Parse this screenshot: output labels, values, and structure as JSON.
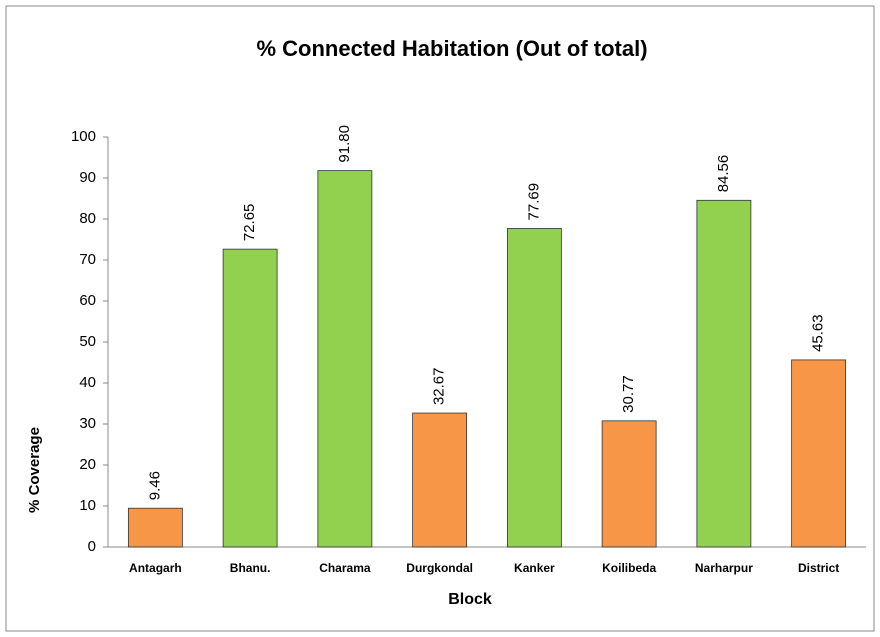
{
  "chart_data": {
    "type": "bar",
    "title": "% Connected Habitation (Out of total)",
    "x_label": "Block",
    "y_label": "% Coverage",
    "categories": [
      "Antagarh",
      "Bhanu.",
      "Charama",
      "Durgkondal",
      "Kanker",
      "Koilibeda",
      "Narharpur",
      "District"
    ],
    "values": [
      9.46,
      72.65,
      91.8,
      32.67,
      77.69,
      30.77,
      84.56,
      45.63
    ],
    "value_labels": [
      "9.46",
      "72.65",
      "91.80",
      "32.67",
      "77.69",
      "30.77",
      "84.56",
      "45.63"
    ],
    "colors": [
      "#f79646",
      "#92d050",
      "#92d050",
      "#f79646",
      "#92d050",
      "#f79646",
      "#92d050",
      "#f79646"
    ],
    "ylim": [
      0,
      100
    ],
    "yticks": [
      0,
      10,
      20,
      30,
      40,
      50,
      60,
      70,
      80,
      90,
      100
    ],
    "grid": false
  }
}
